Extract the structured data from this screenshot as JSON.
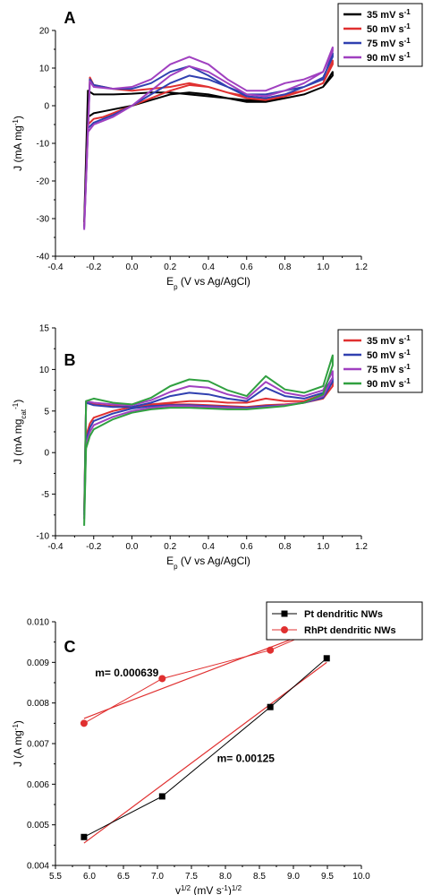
{
  "chart_data": [
    {
      "panel": "A",
      "type": "line",
      "xlabel": "E_p (V vs Ag/AgCl)",
      "ylabel": "J (mA mg^-1)",
      "xlim": [
        -0.4,
        1.2
      ],
      "ylim": [
        -40,
        20
      ],
      "xticks": [
        -0.4,
        -0.2,
        0.0,
        0.2,
        0.4,
        0.6,
        0.8,
        1.0,
        1.2
      ],
      "yticks": [
        -40,
        -30,
        -20,
        -10,
        0,
        10,
        20
      ],
      "tick_labels_x": [
        "-0.4",
        "-0.2",
        "0.0",
        "0.2",
        "0.4",
        "0.6",
        "0.8",
        "1.0",
        "1.2"
      ],
      "tick_labels_y": [
        "-40",
        "-30",
        "-20",
        "-10",
        "0",
        "10",
        "20"
      ],
      "legend_position": "top-right",
      "series": [
        {
          "name": "35 mV s-1",
          "color": "#000000",
          "x": [
            -0.25,
            -0.23,
            -0.2,
            -0.15,
            -0.1,
            0,
            0.1,
            0.2,
            0.3,
            0.4,
            0.5,
            0.6,
            0.7,
            0.8,
            0.9,
            1.0,
            1.05,
            1.05,
            1.0,
            0.9,
            0.8,
            0.7,
            0.6,
            0.5,
            0.4,
            0.3,
            0.2,
            0.1,
            0,
            -0.1,
            -0.2,
            -0.23,
            -0.25
          ],
          "y": [
            -31,
            -3,
            -2,
            -1.5,
            -1,
            0,
            1.5,
            3,
            3.5,
            3,
            2,
            1,
            1,
            2,
            3,
            5,
            8,
            9,
            5,
            3,
            2,
            1.5,
            1.5,
            2,
            2.5,
            3,
            3.5,
            3.5,
            3.2,
            3,
            3,
            4,
            -31
          ]
        },
        {
          "name": "50 mV s-1",
          "color": "#e03030",
          "x": [
            -0.25,
            -0.23,
            -0.2,
            -0.15,
            -0.1,
            0,
            0.1,
            0.2,
            0.3,
            0.4,
            0.5,
            0.6,
            0.7,
            0.8,
            0.9,
            1.0,
            1.05,
            1.05,
            1.0,
            0.9,
            0.8,
            0.7,
            0.6,
            0.5,
            0.4,
            0.3,
            0.2,
            0.1,
            0,
            -0.1,
            -0.2,
            -0.22,
            -0.25
          ],
          "y": [
            -32,
            -5,
            -3.5,
            -3,
            -2,
            0,
            2,
            4,
            5.5,
            5,
            3.5,
            2,
            1.5,
            2.5,
            4,
            6,
            11,
            12,
            6,
            4,
            3,
            2,
            2.5,
            3.5,
            5,
            6,
            5,
            4.5,
            4,
            4.5,
            5.5,
            7.5,
            -32
          ]
        },
        {
          "name": "75 mV s-1",
          "color": "#3040b0",
          "x": [
            -0.25,
            -0.23,
            -0.2,
            -0.15,
            -0.1,
            0,
            0.1,
            0.2,
            0.3,
            0.4,
            0.5,
            0.6,
            0.7,
            0.8,
            0.9,
            1.0,
            1.05,
            1.05,
            1.0,
            0.9,
            0.8,
            0.7,
            0.6,
            0.5,
            0.4,
            0.3,
            0.2,
            0.1,
            0,
            -0.1,
            -0.2,
            -0.22,
            -0.25
          ],
          "y": [
            -32.5,
            -6,
            -4.5,
            -3.5,
            -2.5,
            0,
            3,
            6,
            8,
            7,
            5,
            2.5,
            2,
            3,
            5,
            7.5,
            13,
            14,
            7,
            5,
            4,
            3,
            3,
            5,
            8,
            10.5,
            9,
            6,
            4.5,
            4.5,
            5.5,
            7,
            -32.5
          ]
        },
        {
          "name": "90 mV s-1",
          "color": "#a040c0",
          "x": [
            -0.25,
            -0.23,
            -0.2,
            -0.15,
            -0.1,
            0,
            0.1,
            0.2,
            0.3,
            0.4,
            0.5,
            0.6,
            0.7,
            0.8,
            0.9,
            1.0,
            1.05,
            1.05,
            1.0,
            0.9,
            0.8,
            0.7,
            0.6,
            0.5,
            0.4,
            0.3,
            0.2,
            0.1,
            0,
            -0.1,
            -0.2,
            -0.22,
            -0.25
          ],
          "y": [
            -33,
            -7,
            -5,
            -4,
            -3,
            0,
            4,
            8,
            10.5,
            9,
            6,
            3,
            2.5,
            4,
            6,
            9,
            14.5,
            15.5,
            9,
            7,
            6,
            4,
            4,
            7,
            11,
            13,
            11,
            7,
            5,
            4.5,
            5,
            6.5,
            -33
          ]
        }
      ]
    },
    {
      "panel": "B",
      "type": "line",
      "xlabel": "E_p (V vs Ag/AgCl)",
      "ylabel": "J (mA mg_cat^-1)",
      "xlim": [
        -0.4,
        1.2
      ],
      "ylim": [
        -10,
        15
      ],
      "xticks": [
        -0.4,
        -0.2,
        0.0,
        0.2,
        0.4,
        0.6,
        0.8,
        1.0,
        1.2
      ],
      "yticks": [
        -10,
        -5,
        0,
        5,
        10,
        15
      ],
      "tick_labels_x": [
        "-0.4",
        "-0.2",
        "0.0",
        "0.2",
        "0.4",
        "0.6",
        "0.8",
        "1.0",
        "1.2"
      ],
      "tick_labels_y": [
        "-10",
        "-5",
        "0",
        "5",
        "10",
        "15"
      ],
      "legend_position": "top-right",
      "series": [
        {
          "name": "35 mV s-1",
          "color": "#e03030",
          "x": [
            -0.25,
            -0.24,
            -0.22,
            -0.2,
            -0.1,
            0,
            0.1,
            0.2,
            0.3,
            0.4,
            0.5,
            0.6,
            0.7,
            0.8,
            0.9,
            1.0,
            1.05,
            1.05,
            1.0,
            0.9,
            0.8,
            0.7,
            0.6,
            0.5,
            0.4,
            0.3,
            0.2,
            0.1,
            0,
            -0.1,
            -0.2,
            -0.24,
            -0.25
          ],
          "y": [
            -7,
            2,
            3.5,
            4.2,
            5,
            5.5,
            5.7,
            5.8,
            5.8,
            5.7,
            5.6,
            5.5,
            5.7,
            5.8,
            6,
            6.5,
            8,
            8.5,
            7,
            6.2,
            6.2,
            6.5,
            6,
            6,
            6.2,
            6.2,
            6,
            5.8,
            5.5,
            5.6,
            5.8,
            6,
            -7
          ]
        },
        {
          "name": "50 mV s-1",
          "color": "#3040b0",
          "x": [
            -0.25,
            -0.24,
            -0.22,
            -0.2,
            -0.1,
            0,
            0.1,
            0.2,
            0.3,
            0.4,
            0.5,
            0.6,
            0.7,
            0.8,
            0.9,
            1.0,
            1.05,
            1.05,
            1.0,
            0.9,
            0.8,
            0.7,
            0.6,
            0.5,
            0.4,
            0.3,
            0.2,
            0.1,
            0,
            -0.1,
            -0.2,
            -0.24,
            -0.25
          ],
          "y": [
            -7.5,
            1.5,
            3,
            3.8,
            4.7,
            5.3,
            5.6,
            5.7,
            5.7,
            5.6,
            5.5,
            5.4,
            5.6,
            5.7,
            6,
            6.6,
            8.5,
            9,
            7.2,
            6.5,
            6.8,
            7.8,
            6.2,
            6.5,
            7,
            7.2,
            6.8,
            6,
            5.5,
            5.5,
            5.7,
            6,
            -7.5
          ]
        },
        {
          "name": "75 mV s-1",
          "color": "#a040c0",
          "x": [
            -0.25,
            -0.24,
            -0.22,
            -0.2,
            -0.1,
            0,
            0.1,
            0.2,
            0.3,
            0.4,
            0.5,
            0.6,
            0.7,
            0.8,
            0.9,
            1.0,
            1.05,
            1.05,
            1.0,
            0.9,
            0.8,
            0.7,
            0.6,
            0.5,
            0.4,
            0.3,
            0.2,
            0.1,
            0,
            -0.1,
            -0.2,
            -0.24,
            -0.25
          ],
          "y": [
            -8,
            1,
            2.5,
            3.3,
            4.3,
            5,
            5.4,
            5.6,
            5.6,
            5.5,
            5.4,
            5.3,
            5.5,
            5.7,
            6,
            6.8,
            9,
            9.8,
            7.5,
            6.8,
            7.2,
            8.5,
            6.5,
            7,
            7.8,
            8,
            7.3,
            6.3,
            5.7,
            5.8,
            6,
            6.2,
            -8
          ]
        },
        {
          "name": "90 mV s-1",
          "color": "#30a040",
          "x": [
            -0.25,
            -0.24,
            -0.22,
            -0.2,
            -0.1,
            0,
            0.1,
            0.2,
            0.3,
            0.4,
            0.5,
            0.6,
            0.7,
            0.8,
            0.9,
            1.0,
            1.05,
            1.05,
            1.0,
            0.9,
            0.8,
            0.7,
            0.6,
            0.5,
            0.4,
            0.3,
            0.2,
            0.1,
            0,
            -0.1,
            -0.2,
            -0.24,
            -0.25
          ],
          "y": [
            -8.8,
            0.5,
            2,
            2.8,
            4,
            4.8,
            5.2,
            5.4,
            5.4,
            5.3,
            5.2,
            5.2,
            5.4,
            5.6,
            6,
            7,
            10.5,
            11.7,
            8,
            7.2,
            7.6,
            9.2,
            6.8,
            7.5,
            8.6,
            8.8,
            8,
            6.6,
            5.8,
            6,
            6.5,
            6.2,
            -8.8
          ]
        }
      ]
    },
    {
      "panel": "C",
      "type": "scatter",
      "xlabel": "v^1/2 (mV s^-1)^1/2",
      "ylabel": "J (A mg^-1)",
      "xlim": [
        5.5,
        10.0
      ],
      "ylim": [
        0.004,
        0.01
      ],
      "xticks": [
        5.5,
        6.0,
        6.5,
        7.0,
        7.5,
        8.0,
        8.5,
        9.0,
        9.5,
        10.0
      ],
      "yticks": [
        0.004,
        0.005,
        0.006,
        0.007,
        0.008,
        0.009,
        0.01
      ],
      "tick_labels_x": [
        "5.5",
        "6.0",
        "6.5",
        "7.0",
        "7.5",
        "8.0",
        "8.5",
        "9.0",
        "9.5",
        "10.0"
      ],
      "tick_labels_y": [
        "0.004",
        "0.005",
        "0.006",
        "0.007",
        "0.008",
        "0.009",
        "0.010"
      ],
      "legend_position": "top-right",
      "annotations": [
        "m= 0.000639",
        "m= 0.00125"
      ],
      "series": [
        {
          "name": "Pt dendritic NWs",
          "color": "#000000",
          "marker": "square",
          "x": [
            5.92,
            7.07,
            8.66,
            9.49
          ],
          "y": [
            0.0047,
            0.0057,
            0.0079,
            0.0091
          ],
          "fit": {
            "slope": 0.00125,
            "x": [
              5.92,
              9.49
            ],
            "y": [
              0.00455,
              0.009
            ]
          }
        },
        {
          "name": "RhPt dendritic NWs",
          "color": "#e03030",
          "marker": "circle",
          "x": [
            5.92,
            7.07,
            8.66,
            9.49
          ],
          "y": [
            0.0075,
            0.0086,
            0.0093,
            0.0099
          ],
          "fit": {
            "slope": 0.000639,
            "x": [
              5.92,
              9.49
            ],
            "y": [
              0.00762,
              0.0099
            ]
          }
        }
      ]
    }
  ]
}
